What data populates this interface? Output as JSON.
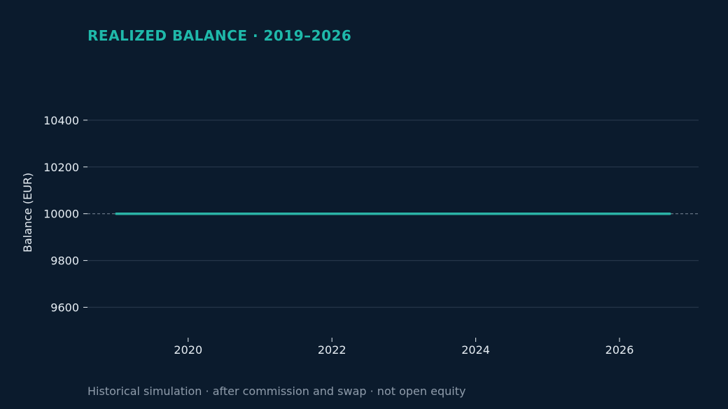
{
  "chart_data": {
    "type": "line",
    "title": "REALIZED BALANCE · 2019–2026",
    "xlabel": "",
    "ylabel": "Balance (EUR)",
    "footnote": "Historical simulation · after commission and swap · not open equity",
    "xlim": [
      2018.6,
      2027.1
    ],
    "ylim": [
      9470,
      10570
    ],
    "x_ticks": [
      2020,
      2022,
      2024,
      2026
    ],
    "y_ticks": [
      9600,
      9800,
      10000,
      10200,
      10400
    ],
    "x_tick_labels": [
      "2020",
      "2022",
      "2024",
      "2026"
    ],
    "y_tick_labels": [
      "9600",
      "9800",
      "10000",
      "10200",
      "10400"
    ],
    "grid": "horizontal",
    "reference_line": {
      "y": 10000,
      "style": "dashed"
    },
    "series": [
      {
        "x": [
          2019.0,
          2026.7
        ],
        "y": [
          10000,
          10000
        ]
      }
    ]
  },
  "colors": {
    "background": "#0b1b2d",
    "title": "#1fb9aa",
    "series": "#2bb3a6",
    "grid": "#253649",
    "reference": "#7d8a99",
    "tick_text": "#e6edf3",
    "footnote": "#8f9cab"
  }
}
